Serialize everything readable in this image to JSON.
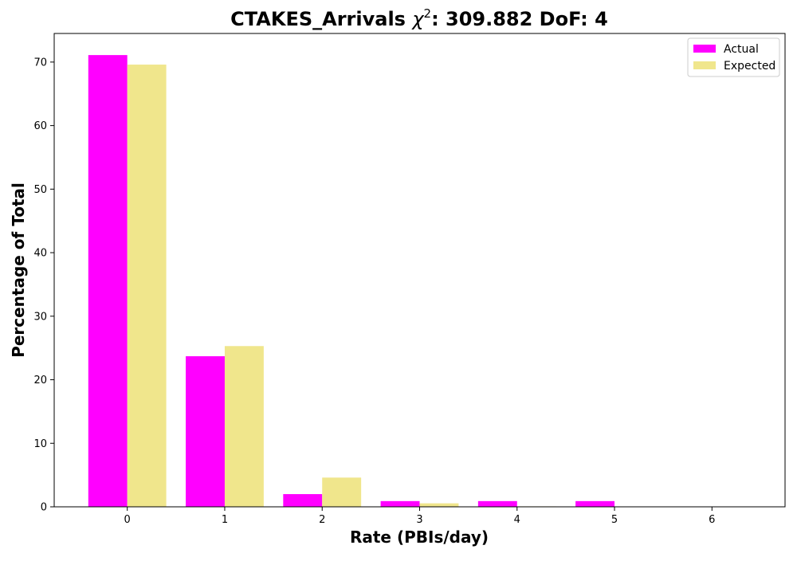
{
  "chart_data": {
    "type": "bar",
    "title_prefix": "CTAKES_Arrivals ",
    "title_symbol": "χ",
    "title_superscript": "2",
    "title_suffix": ": 309.882 DoF: 4",
    "xlabel": "Rate (PBIs/day)",
    "ylabel": "Percentage of Total",
    "categories": [
      "0",
      "1",
      "2",
      "3",
      "4",
      "5",
      "6"
    ],
    "series": [
      {
        "name": "Actual",
        "color": "#ff00ff",
        "values": [
          71.1,
          23.7,
          2.0,
          0.9,
          0.9,
          0.9,
          0.0
        ]
      },
      {
        "name": "Expected",
        "color": "#f0e68c",
        "values": [
          69.6,
          25.3,
          4.6,
          0.55,
          0.07,
          0.0,
          0.0
        ]
      }
    ],
    "ylim": [
      0,
      74.5
    ],
    "yticks": [
      0,
      10,
      20,
      30,
      40,
      50,
      60,
      70
    ],
    "xlim": [
      -0.75,
      6.75
    ],
    "grid": false,
    "legend_position": "top-right"
  }
}
